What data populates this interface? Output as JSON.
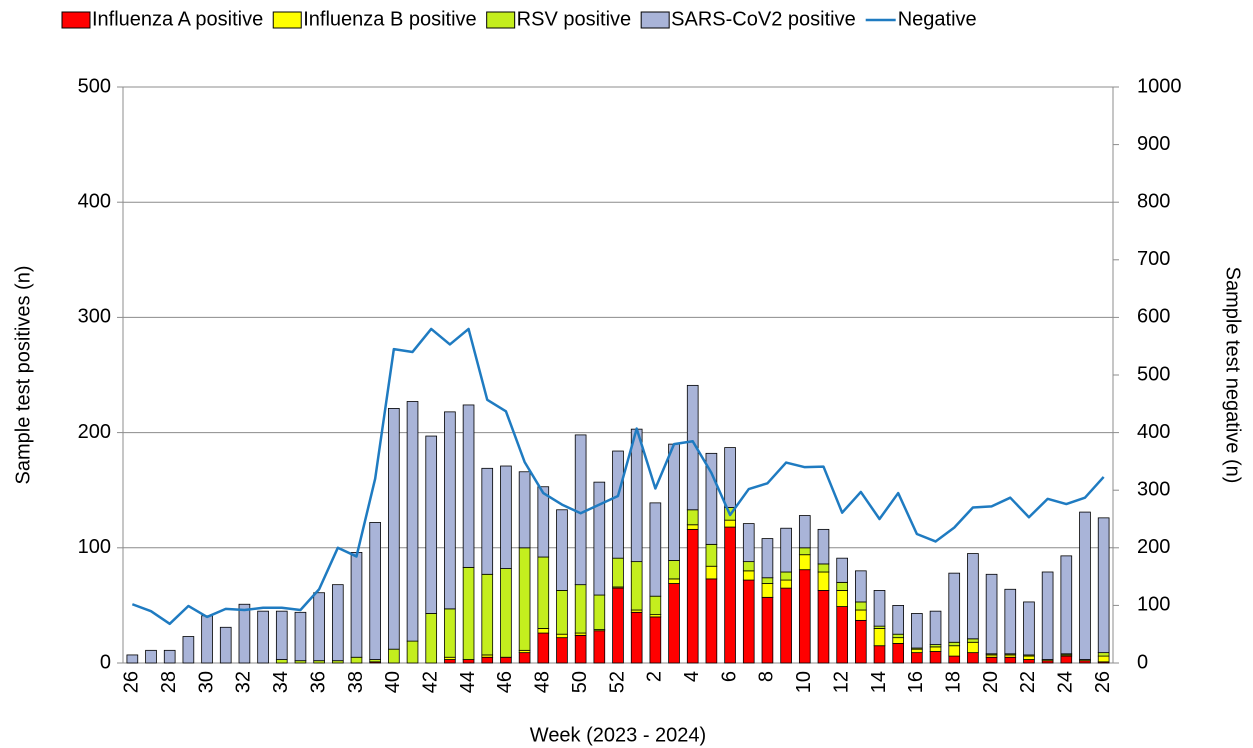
{
  "chart_data": {
    "type": "bar",
    "stacked": true,
    "x_label": "Week (2023 - 2024)",
    "y_label": "Sample test positives (n)",
    "y2_label": "Sample test negative (n)",
    "categories": [
      "26",
      null,
      "28",
      null,
      "30",
      null,
      "32",
      null,
      "34",
      null,
      "36",
      null,
      "38",
      null,
      "40",
      null,
      "42",
      null,
      "44",
      null,
      "46",
      null,
      "48",
      null,
      "50",
      null,
      "52",
      null,
      "2",
      null,
      "4",
      null,
      "6",
      null,
      "8",
      null,
      "10",
      null,
      "12",
      null,
      "14",
      null,
      "16",
      null,
      "18",
      null,
      "20",
      null,
      "22",
      null,
      "24",
      null,
      "26"
    ],
    "ylim": [
      0,
      500
    ],
    "yticks": [
      0,
      100,
      200,
      300,
      400,
      500
    ],
    "y2lim": [
      0,
      1000
    ],
    "y2ticks": [
      0,
      100,
      200,
      300,
      400,
      500,
      600,
      700,
      800,
      900,
      1000
    ],
    "grid": true,
    "legend": "top",
    "series": [
      {
        "name": "Influenza A positive",
        "color": "#ff0000",
        "values": [
          0,
          0,
          0,
          0,
          0,
          0,
          0,
          0,
          0,
          0,
          0,
          0,
          0,
          1,
          0,
          0,
          0,
          3,
          3,
          5,
          5,
          9,
          26,
          22,
          24,
          28,
          65,
          44,
          40,
          69,
          116,
          73,
          118,
          72,
          57,
          65,
          81,
          63,
          49,
          37,
          15,
          17,
          9,
          10,
          6,
          9,
          5,
          5,
          3,
          2,
          6,
          2,
          1
        ]
      },
      {
        "name": "Influenza B positive",
        "color": "#ffff00",
        "values": [
          0,
          0,
          0,
          0,
          0,
          0,
          0,
          0,
          0,
          0,
          0,
          0,
          0,
          0,
          0,
          0,
          0,
          2,
          0,
          2,
          0,
          2,
          4,
          3,
          2,
          1,
          1,
          2,
          2,
          4,
          4,
          11,
          6,
          8,
          12,
          7,
          13,
          16,
          14,
          9,
          15,
          5,
          3,
          4,
          9,
          9,
          2,
          2,
          3,
          1,
          1,
          1,
          5
        ]
      },
      {
        "name": "RSV positive",
        "color": "#c4ee1e",
        "values": [
          0,
          0,
          0,
          0,
          0,
          0,
          0,
          0,
          3,
          2,
          2,
          2,
          5,
          2,
          12,
          19,
          43,
          42,
          80,
          70,
          77,
          89,
          62,
          38,
          42,
          30,
          25,
          42,
          16,
          16,
          13,
          19,
          11,
          8,
          5,
          7,
          6,
          7,
          7,
          7,
          2,
          3,
          1,
          2,
          3,
          3,
          1,
          1,
          1,
          0,
          1,
          0,
          3
        ]
      },
      {
        "name": "SARS-CoV2 positive",
        "color": "#a9b4d8",
        "values": [
          7,
          11,
          11,
          23,
          41,
          31,
          51,
          45,
          42,
          42,
          59,
          66,
          91,
          119,
          209,
          208,
          154,
          171,
          141,
          92,
          89,
          66,
          61,
          70,
          130,
          98,
          93,
          115,
          81,
          101,
          108,
          79,
          52,
          33,
          34,
          38,
          28,
          30,
          21,
          27,
          31,
          25,
          30,
          29,
          60,
          74,
          69,
          56,
          46,
          76,
          85,
          128,
          117
        ]
      },
      {
        "name": "Negative",
        "color": "#1f7bc1",
        "type": "line",
        "axis": "y2",
        "values": [
          102,
          90,
          68,
          99,
          80,
          94,
          92,
          96,
          96,
          92,
          128,
          200,
          185,
          320,
          545,
          540,
          580,
          553,
          580,
          457,
          437,
          349,
          295,
          275,
          260,
          275,
          290,
          407,
          303,
          380,
          385,
          330,
          257,
          302,
          312,
          348,
          340,
          341,
          261,
          297,
          250,
          295,
          224,
          211,
          235,
          270,
          272,
          287,
          253,
          285,
          276,
          287,
          323
        ]
      }
    ]
  }
}
